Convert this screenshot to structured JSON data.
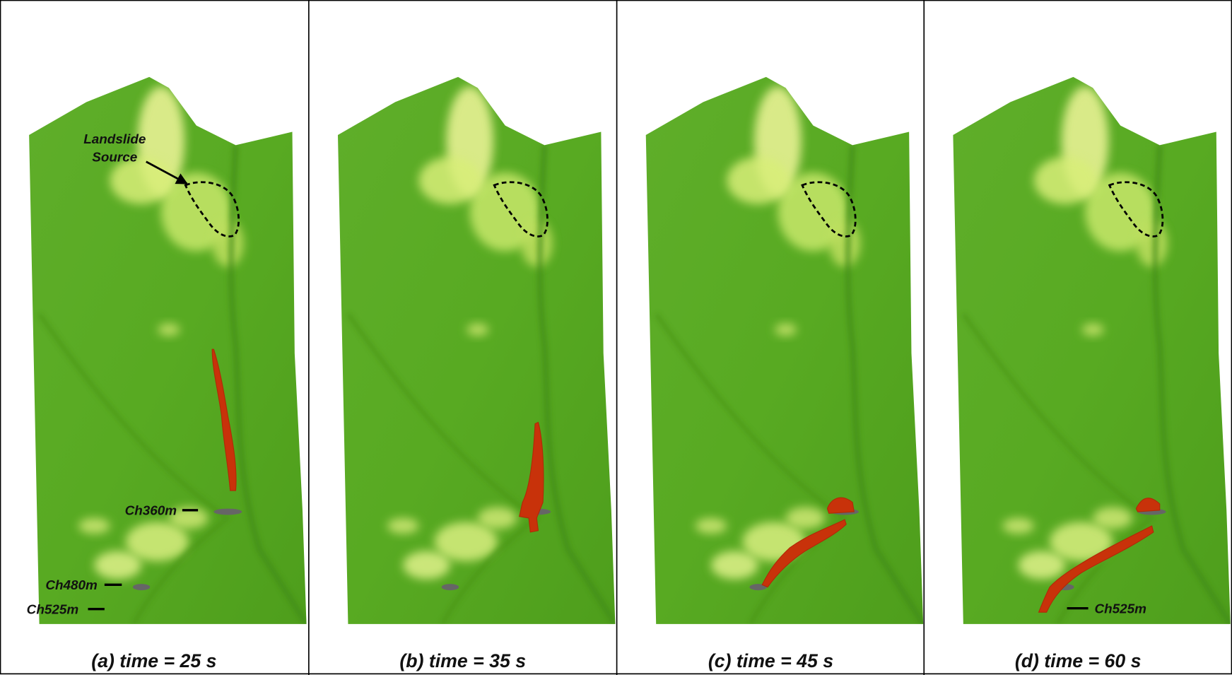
{
  "panels": [
    {
      "caption": "(a) time = 25 s",
      "source_label": [
        "Landslide",
        "Source"
      ],
      "chainage_labels": [
        "Ch360m",
        "Ch480m",
        "Ch525m"
      ]
    },
    {
      "caption": "(b) time = 35 s"
    },
    {
      "caption": "(c) time = 45 s"
    },
    {
      "caption": "(d) time = 60 s",
      "chainage_labels": [
        "Ch525m"
      ]
    }
  ]
}
